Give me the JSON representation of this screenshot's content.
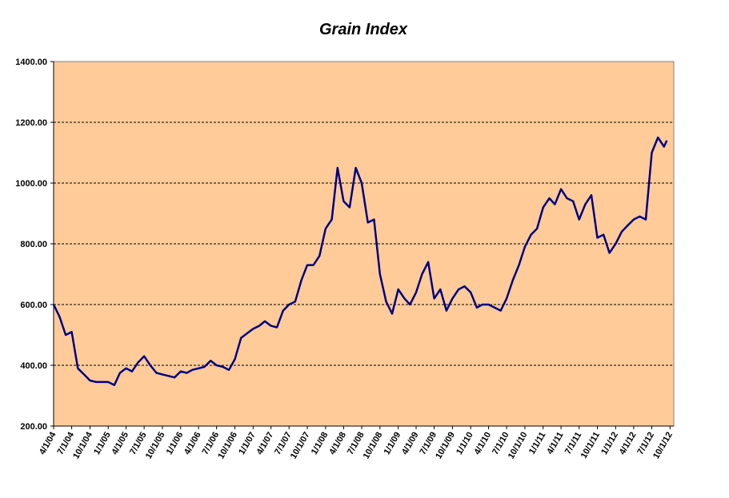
{
  "chart_data": {
    "type": "line",
    "title": "Grain Index",
    "x": [
      "2004-04-01",
      "2004-05-01",
      "2004-06-01",
      "2004-07-01",
      "2004-08-01",
      "2004-09-01",
      "2004-10-01",
      "2004-11-01",
      "2004-12-01",
      "2005-01-01",
      "2005-02-01",
      "2005-03-01",
      "2005-04-01",
      "2005-05-01",
      "2005-06-01",
      "2005-07-01",
      "2005-08-01",
      "2005-09-01",
      "2005-10-01",
      "2005-11-01",
      "2005-12-01",
      "2006-01-01",
      "2006-02-01",
      "2006-03-01",
      "2006-04-01",
      "2006-05-01",
      "2006-06-01",
      "2006-07-01",
      "2006-08-01",
      "2006-09-01",
      "2006-10-01",
      "2006-11-01",
      "2006-12-01",
      "2007-01-01",
      "2007-02-01",
      "2007-03-01",
      "2007-04-01",
      "2007-05-01",
      "2007-06-01",
      "2007-07-01",
      "2007-08-01",
      "2007-09-01",
      "2007-10-01",
      "2007-11-01",
      "2007-12-01",
      "2008-01-01",
      "2008-02-01",
      "2008-03-01",
      "2008-04-01",
      "2008-05-01",
      "2008-06-01",
      "2008-07-01",
      "2008-08-01",
      "2008-09-01",
      "2008-10-01",
      "2008-11-01",
      "2008-12-01",
      "2009-01-01",
      "2009-02-01",
      "2009-03-01",
      "2009-04-01",
      "2009-05-01",
      "2009-06-01",
      "2009-07-01",
      "2009-08-01",
      "2009-09-01",
      "2009-10-01",
      "2009-11-01",
      "2009-12-01",
      "2010-01-01",
      "2010-02-01",
      "2010-03-01",
      "2010-04-01",
      "2010-05-01",
      "2010-06-01",
      "2010-07-01",
      "2010-08-01",
      "2010-09-01",
      "2010-10-01",
      "2010-11-01",
      "2010-12-01",
      "2011-01-01",
      "2011-02-01",
      "2011-03-01",
      "2011-04-01",
      "2011-05-01",
      "2011-06-01",
      "2011-07-01",
      "2011-08-01",
      "2011-09-01",
      "2011-10-01",
      "2011-11-01",
      "2011-12-01",
      "2012-01-01",
      "2012-02-01",
      "2012-03-01",
      "2012-04-01",
      "2012-05-01",
      "2012-06-01",
      "2012-07-01",
      "2012-08-01",
      "2012-09-01",
      "2012-09-15"
    ],
    "series": [
      {
        "name": "Grain Index",
        "color": "#000080",
        "values": [
          600,
          560,
          500,
          510,
          390,
          370,
          350,
          345,
          345,
          345,
          335,
          375,
          390,
          380,
          410,
          430,
          400,
          375,
          370,
          365,
          360,
          380,
          375,
          385,
          390,
          395,
          415,
          400,
          395,
          385,
          420,
          490,
          505,
          520,
          530,
          545,
          530,
          525,
          580,
          600,
          610,
          680,
          730,
          730,
          760,
          850,
          880,
          1050,
          940,
          920,
          1050,
          1000,
          870,
          880,
          700,
          610,
          570,
          650,
          620,
          600,
          640,
          700,
          740,
          620,
          650,
          580,
          620,
          650,
          660,
          640,
          590,
          600,
          600,
          590,
          580,
          620,
          680,
          730,
          790,
          830,
          850,
          920,
          950,
          930,
          980,
          950,
          940,
          880,
          930,
          960,
          820,
          830,
          770,
          800,
          840,
          860,
          880,
          890,
          880,
          1100,
          1150,
          1120,
          1140
        ]
      }
    ],
    "xlim": [
      "2004-04-01",
      "2012-10-20"
    ],
    "xticks": [
      {
        "value": "2004-04-01",
        "label": "4/1/04"
      },
      {
        "value": "2004-07-01",
        "label": "7/1/04"
      },
      {
        "value": "2004-10-01",
        "label": "10/1/04"
      },
      {
        "value": "2005-01-01",
        "label": "1/1/05"
      },
      {
        "value": "2005-04-01",
        "label": "4/1/05"
      },
      {
        "value": "2005-07-01",
        "label": "7/1/05"
      },
      {
        "value": "2005-10-01",
        "label": "10/1/05"
      },
      {
        "value": "2006-01-01",
        "label": "1/1/06"
      },
      {
        "value": "2006-04-01",
        "label": "4/1/06"
      },
      {
        "value": "2006-07-01",
        "label": "7/1/06"
      },
      {
        "value": "2006-10-01",
        "label": "10/1/06"
      },
      {
        "value": "2007-01-01",
        "label": "1/1/07"
      },
      {
        "value": "2007-04-01",
        "label": "4/1/07"
      },
      {
        "value": "2007-07-01",
        "label": "7/1/07"
      },
      {
        "value": "2007-10-01",
        "label": "10/1/07"
      },
      {
        "value": "2008-01-01",
        "label": "1/1/08"
      },
      {
        "value": "2008-04-01",
        "label": "4/1/08"
      },
      {
        "value": "2008-07-01",
        "label": "7/1/08"
      },
      {
        "value": "2008-10-01",
        "label": "10/1/08"
      },
      {
        "value": "2009-01-01",
        "label": "1/1/09"
      },
      {
        "value": "2009-04-01",
        "label": "4/1/09"
      },
      {
        "value": "2009-07-01",
        "label": "7/1/09"
      },
      {
        "value": "2009-10-01",
        "label": "10/1/09"
      },
      {
        "value": "2010-01-01",
        "label": "1/1/10"
      },
      {
        "value": "2010-04-01",
        "label": "4/1/10"
      },
      {
        "value": "2010-07-01",
        "label": "7/1/10"
      },
      {
        "value": "2010-10-01",
        "label": "10/1/10"
      },
      {
        "value": "2011-01-01",
        "label": "1/1/11"
      },
      {
        "value": "2011-04-01",
        "label": "4/1/11"
      },
      {
        "value": "2011-07-01",
        "label": "7/1/11"
      },
      {
        "value": "2011-10-01",
        "label": "10/1/11"
      },
      {
        "value": "2012-01-01",
        "label": "1/1/12"
      },
      {
        "value": "2012-04-01",
        "label": "4/1/12"
      },
      {
        "value": "2012-07-01",
        "label": "7/1/12"
      },
      {
        "value": "2012-10-01",
        "label": "10/1/12"
      }
    ],
    "ylim": [
      200,
      1400
    ],
    "yticks": [
      {
        "value": 200,
        "label": "200.00"
      },
      {
        "value": 400,
        "label": "400.00"
      },
      {
        "value": 600,
        "label": "600.00"
      },
      {
        "value": 800,
        "label": "800.00"
      },
      {
        "value": 1000,
        "label": "1000.00"
      },
      {
        "value": 1200,
        "label": "1200.00"
      },
      {
        "value": 1400,
        "label": "1400.00"
      }
    ],
    "grid": true,
    "background": "#FFCC99"
  }
}
